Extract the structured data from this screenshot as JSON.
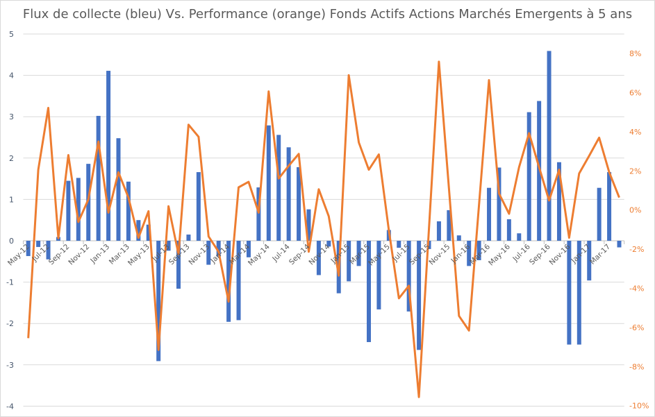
{
  "chart_data": {
    "type": "bar+line",
    "title": "Flux de collecte (bleu) Vs. Performance (orange) Fonds Actifs Actions Marchés Emergents à 5 ans",
    "categories": [
      "May-12",
      "Jun-12",
      "Jul-12",
      "Aug-12",
      "Sep-12",
      "Oct-12",
      "Nov-12",
      "Dec-12",
      "Jan-13",
      "Feb-13",
      "Mar-13",
      "Apr-13",
      "May-13",
      "Jun-13",
      "Jul-13",
      "Aug-13",
      "Sep-13",
      "Oct-13",
      "Nov-13",
      "Dec-13",
      "Jan-14",
      "Feb-14",
      "Mar-14",
      "Apr-14",
      "May-14",
      "Jun-14",
      "Jul-14",
      "Aug-14",
      "Sep-14",
      "Oct-14",
      "Nov-14",
      "Dec-14",
      "Jan-15",
      "Feb-15",
      "Mar-15",
      "Apr-15",
      "May-15",
      "Jun-15",
      "Jul-15",
      "Aug-15",
      "Sep-15",
      "Oct-15",
      "Nov-15",
      "Dec-15",
      "Jan-16",
      "Feb-16",
      "Mar-16",
      "Apr-16",
      "May-16",
      "Jun-16",
      "Jul-16",
      "Aug-16",
      "Sep-16",
      "Oct-16",
      "Nov-16",
      "Dec-16",
      "Jan-17",
      "Feb-17",
      "Mar-17",
      "Apr-17"
    ],
    "series": [
      {
        "name": "Flux de collecte",
        "type": "bar",
        "axis": "left",
        "color": "#4472c4",
        "values": [
          -0.37,
          -0.15,
          -0.45,
          0.09,
          1.45,
          1.52,
          1.86,
          3.02,
          4.11,
          2.48,
          1.43,
          0.5,
          0.39,
          -2.91,
          -0.24,
          -1.16,
          0.15,
          1.66,
          -0.58,
          -0.38,
          -1.96,
          -1.92,
          -0.4,
          1.29,
          2.79,
          2.56,
          2.26,
          1.78,
          0.76,
          -0.83,
          -0.14,
          -1.27,
          -0.98,
          -0.61,
          -2.45,
          -1.66,
          0.26,
          -0.17,
          -1.71,
          -2.64,
          -0.2,
          0.47,
          0.74,
          0.13,
          -0.61,
          -0.47,
          1.28,
          1.77,
          0.52,
          0.18,
          3.11,
          3.38,
          4.59,
          1.9,
          -2.51,
          -2.51,
          -0.96,
          1.28,
          1.66,
          -0.16
        ]
      },
      {
        "name": "Performance",
        "type": "line",
        "axis": "right",
        "color": "#ed7d31",
        "unit": "%",
        "values": [
          -6.55,
          2.06,
          5.22,
          -1.44,
          2.81,
          -0.61,
          0.54,
          3.5,
          -0.13,
          1.93,
          0.64,
          -1.42,
          -0.06,
          -7.15,
          0.19,
          -2.26,
          4.36,
          3.74,
          -1.35,
          -2.13,
          -4.68,
          1.16,
          1.44,
          -0.13,
          6.06,
          1.61,
          2.26,
          2.87,
          -2.13,
          1.06,
          -0.32,
          -3.35,
          6.89,
          3.45,
          2.06,
          2.84,
          -1.03,
          -4.51,
          -3.87,
          -9.56,
          -1.0,
          7.58,
          1.08,
          -5.41,
          -6.16,
          0.24,
          6.64,
          0.84,
          -0.19,
          2.19,
          3.93,
          2.19,
          0.49,
          2.06,
          -1.42,
          1.87,
          2.77,
          3.7,
          1.93,
          0.64
        ]
      }
    ],
    "y_left": {
      "range": [
        -4,
        5
      ],
      "ticks": [
        "5",
        "4",
        "3",
        "2",
        "1",
        "0",
        "-1",
        "-2",
        "-3",
        "-4"
      ],
      "tick_values": [
        5,
        4,
        3,
        2,
        1,
        0,
        -1,
        -2,
        -3,
        -4
      ]
    },
    "y_right": {
      "range": [
        -10,
        8
      ],
      "ticks": [
        "8%",
        "6%",
        "4%",
        "2%",
        "0%",
        "-2%",
        "-4%",
        "-6%",
        "-8%",
        "-10%"
      ],
      "tick_values": [
        8,
        6,
        4,
        2,
        0,
        -2,
        -4,
        -6,
        -8,
        -10
      ]
    },
    "x_tick_every": 2,
    "grid": true,
    "legend": "none"
  }
}
